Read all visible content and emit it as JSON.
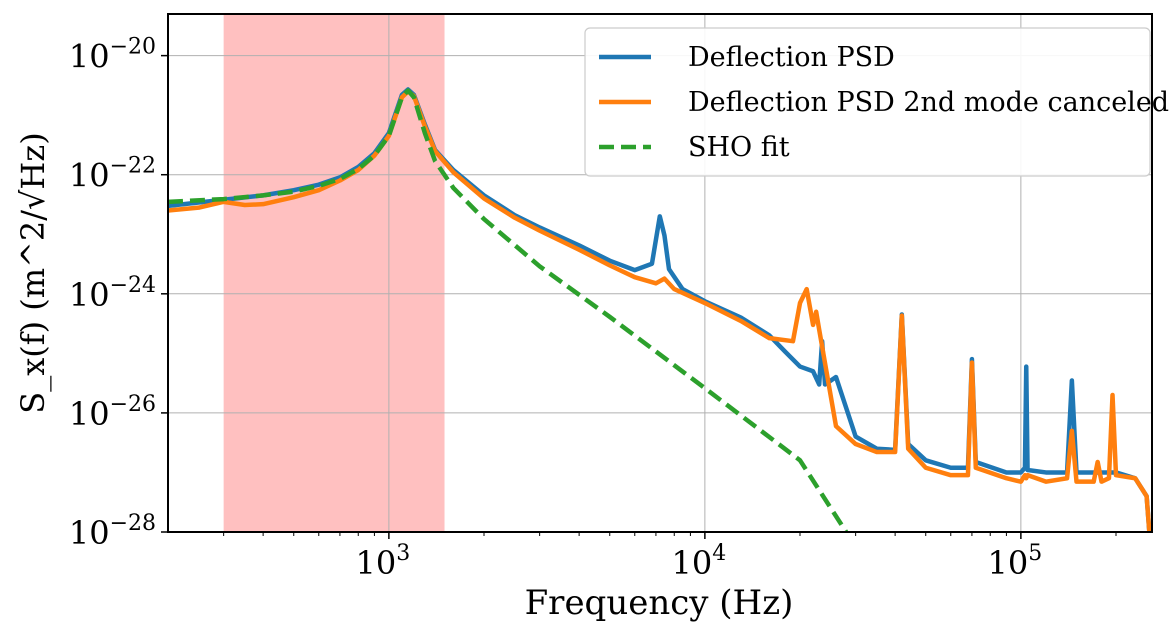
{
  "chart_data": {
    "type": "line",
    "xscale": "log",
    "yscale": "log",
    "xlim": [
      200,
      260000
    ],
    "ylim": [
      1e-28,
      5e-20
    ],
    "xlabel": "Frequency (Hz)",
    "ylabel": "S_x(f) (m^2/√Hz)",
    "grid": true,
    "legend_position": "top-right",
    "x_ticks": [
      {
        "value": 1000,
        "base": "10",
        "exp": "3"
      },
      {
        "value": 10000,
        "base": "10",
        "exp": "4"
      },
      {
        "value": 100000,
        "base": "10",
        "exp": "5"
      }
    ],
    "y_ticks": [
      {
        "value": 1e-20,
        "base": "10",
        "exp": "−20"
      },
      {
        "value": 1e-22,
        "base": "10",
        "exp": "−22"
      },
      {
        "value": 1e-24,
        "base": "10",
        "exp": "−24"
      },
      {
        "value": 1e-26,
        "base": "10",
        "exp": "−26"
      },
      {
        "value": 1e-28,
        "base": "10",
        "exp": "−28"
      }
    ],
    "shaded_region": {
      "x": [
        300,
        1500
      ],
      "color": "#ffc0c0"
    },
    "series": [
      {
        "name": "Deflection PSD",
        "color": "#1f77b4",
        "style": "solid",
        "points": [
          [
            200,
            3e-23
          ],
          [
            300,
            3.8e-23
          ],
          [
            400,
            4.5e-23
          ],
          [
            500,
            5.5e-23
          ],
          [
            600,
            6.8e-23
          ],
          [
            700,
            9e-23
          ],
          [
            800,
            1.35e-22
          ],
          [
            900,
            2.3e-22
          ],
          [
            1000,
            5e-22
          ],
          [
            1100,
            2.2e-21
          ],
          [
            1150,
            2.7e-21
          ],
          [
            1200,
            2.2e-21
          ],
          [
            1300,
            7e-22
          ],
          [
            1400,
            2.6e-22
          ],
          [
            1600,
            1.2e-22
          ],
          [
            2000,
            4.5e-23
          ],
          [
            2500,
            2.1e-23
          ],
          [
            3000,
            1.3e-23
          ],
          [
            4000,
            6.5e-24
          ],
          [
            5000,
            3.6e-24
          ],
          [
            6000,
            2.5e-24
          ],
          [
            6800,
            3.2e-24
          ],
          [
            7200,
            2e-23
          ],
          [
            7450,
            9.5e-24
          ],
          [
            7700,
            2.6e-24
          ],
          [
            8500,
            1.2e-24
          ],
          [
            10000,
            7.5e-25
          ],
          [
            13000,
            4e-25
          ],
          [
            16000,
            2e-25
          ],
          [
            18000,
            1.05e-25
          ],
          [
            20000,
            6e-26
          ],
          [
            22000,
            5e-26
          ],
          [
            23000,
            3e-26
          ],
          [
            23500,
            1.6e-25
          ],
          [
            24000,
            3e-26
          ],
          [
            26000,
            4e-26
          ],
          [
            30000,
            4e-27
          ],
          [
            35000,
            2.5e-27
          ],
          [
            40000,
            2.4e-27
          ],
          [
            42000,
            4.5e-25
          ],
          [
            44000,
            3e-27
          ],
          [
            50000,
            1.6e-27
          ],
          [
            60000,
            1.2e-27
          ],
          [
            68000,
            1.2e-27
          ],
          [
            70000,
            8e-26
          ],
          [
            72000,
            1.5e-27
          ],
          [
            90000,
            1e-27
          ],
          [
            100000,
            1e-27
          ],
          [
            103000,
            1.2e-27
          ],
          [
            104000,
            6e-26
          ],
          [
            105000,
            1.1e-27
          ],
          [
            120000,
            1e-27
          ],
          [
            140000,
            1e-27
          ],
          [
            145000,
            3.5e-26
          ],
          [
            150000,
            1e-27
          ],
          [
            200000,
            1e-27
          ],
          [
            230000,
            8e-28
          ],
          [
            250000,
            4e-28
          ],
          [
            255000,
            1e-28
          ]
        ]
      },
      {
        "name": "Deflection PSD 2nd mode canceled",
        "color": "#ff7f0e",
        "style": "solid",
        "points": [
          [
            200,
            2.5e-23
          ],
          [
            250,
            2.8e-23
          ],
          [
            300,
            3.5e-23
          ],
          [
            350,
            3.1e-23
          ],
          [
            400,
            3.2e-23
          ],
          [
            500,
            4.2e-23
          ],
          [
            600,
            5.5e-23
          ],
          [
            700,
            8e-23
          ],
          [
            800,
            1.2e-22
          ],
          [
            900,
            2.1e-22
          ],
          [
            1000,
            4.5e-22
          ],
          [
            1100,
            2e-21
          ],
          [
            1150,
            2.5e-21
          ],
          [
            1200,
            2.1e-21
          ],
          [
            1300,
            6.5e-22
          ],
          [
            1400,
            2.5e-22
          ],
          [
            1600,
            1.1e-22
          ],
          [
            2000,
            4e-23
          ],
          [
            2500,
            1.9e-23
          ],
          [
            3000,
            1.15e-23
          ],
          [
            4000,
            5.5e-24
          ],
          [
            5000,
            3e-24
          ],
          [
            6000,
            1.9e-24
          ],
          [
            7000,
            1.5e-24
          ],
          [
            7450,
            1.8e-24
          ],
          [
            8000,
            1.2e-24
          ],
          [
            10000,
            7e-25
          ],
          [
            13000,
            3.5e-25
          ],
          [
            16000,
            1.8e-25
          ],
          [
            19000,
            1.6e-25
          ],
          [
            20000,
            7e-25
          ],
          [
            21000,
            1.2e-24
          ],
          [
            22000,
            3e-25
          ],
          [
            22500,
            5e-25
          ],
          [
            23000,
            2.5e-25
          ],
          [
            26000,
            6e-27
          ],
          [
            30000,
            3e-27
          ],
          [
            35000,
            2.2e-27
          ],
          [
            40000,
            2.2e-27
          ],
          [
            42000,
            4.3e-25
          ],
          [
            44000,
            2.5e-27
          ],
          [
            50000,
            1.2e-27
          ],
          [
            60000,
            9e-28
          ],
          [
            68000,
            9e-28
          ],
          [
            70000,
            7e-26
          ],
          [
            72000,
            1.2e-27
          ],
          [
            90000,
            8e-28
          ],
          [
            100000,
            7e-28
          ],
          [
            103000,
            9e-28
          ],
          [
            104000,
            8e-28
          ],
          [
            105000,
            9e-28
          ],
          [
            120000,
            7e-28
          ],
          [
            140000,
            8e-28
          ],
          [
            145000,
            5e-27
          ],
          [
            150000,
            7e-28
          ],
          [
            170000,
            7e-28
          ],
          [
            175000,
            1.5e-27
          ],
          [
            180000,
            7e-28
          ],
          [
            190000,
            8e-28
          ],
          [
            195000,
            2e-26
          ],
          [
            200000,
            9e-28
          ],
          [
            230000,
            8e-28
          ],
          [
            250000,
            4e-28
          ],
          [
            255000,
            1e-28
          ]
        ]
      },
      {
        "name": "SHO fit",
        "color": "#2ca02c",
        "style": "dashed",
        "points": [
          [
            200,
            3.5e-23
          ],
          [
            300,
            3.9e-23
          ],
          [
            400,
            4.5e-23
          ],
          [
            500,
            5.2e-23
          ],
          [
            600,
            6.5e-23
          ],
          [
            700,
            8.5e-23
          ],
          [
            800,
            1.25e-22
          ],
          [
            900,
            2.1e-22
          ],
          [
            1000,
            4.5e-22
          ],
          [
            1100,
            2e-21
          ],
          [
            1150,
            2.6e-21
          ],
          [
            1200,
            2e-21
          ],
          [
            1300,
            5e-22
          ],
          [
            1400,
            1.7e-22
          ],
          [
            1600,
            6e-23
          ],
          [
            2000,
            1.8e-23
          ],
          [
            3000,
            2.9e-24
          ],
          [
            5000,
            4.1e-25
          ],
          [
            10000,
            2.6e-26
          ],
          [
            20000,
            1.6e-27
          ],
          [
            28000,
            1e-28
          ]
        ]
      }
    ]
  }
}
